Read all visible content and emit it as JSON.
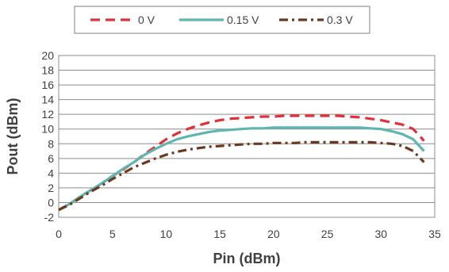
{
  "chart_data": {
    "type": "line",
    "xlabel": "Pin (dBm)",
    "ylabel": "Pout (dBm)",
    "xlim": [
      0,
      35
    ],
    "ylim": [
      -2,
      20
    ],
    "xticks": [
      0,
      5,
      10,
      15,
      20,
      25,
      30,
      35
    ],
    "yticks": [
      -2,
      0,
      2,
      4,
      6,
      8,
      10,
      12,
      14,
      16,
      18,
      20
    ],
    "grid": "horizontal",
    "legend_position": "top",
    "series": [
      {
        "name": "0 V",
        "color": "#e0303a",
        "style": "dashed",
        "x": [
          0,
          1,
          2,
          3,
          4,
          5,
          6,
          7,
          8,
          9,
          10,
          11,
          12,
          13,
          14,
          15,
          16,
          17,
          18,
          19,
          20,
          21,
          22,
          23,
          24,
          25,
          26,
          27,
          28,
          29,
          30,
          31,
          32,
          33,
          34
        ],
        "y": [
          -1,
          -0.2,
          0.8,
          1.7,
          2.6,
          3.6,
          4.5,
          5.5,
          6.6,
          7.6,
          8.6,
          9.4,
          10.0,
          10.5,
          10.9,
          11.2,
          11.4,
          11.5,
          11.6,
          11.7,
          11.7,
          11.8,
          11.8,
          11.8,
          11.8,
          11.8,
          11.8,
          11.7,
          11.6,
          11.4,
          11.2,
          10.9,
          10.6,
          10.0,
          8.4
        ]
      },
      {
        "name": "0.15 V",
        "color": "#5fb5b0",
        "style": "solid",
        "x": [
          0,
          1,
          2,
          3,
          4,
          5,
          6,
          7,
          8,
          9,
          10,
          11,
          12,
          13,
          14,
          15,
          16,
          17,
          18,
          19,
          20,
          21,
          22,
          23,
          24,
          25,
          26,
          27,
          28,
          29,
          30,
          31,
          32,
          33,
          34
        ],
        "y": [
          -1,
          -0.2,
          0.8,
          1.7,
          2.6,
          3.6,
          4.6,
          5.5,
          6.5,
          7.3,
          8.0,
          8.6,
          9.0,
          9.3,
          9.6,
          9.8,
          9.9,
          10.0,
          10.1,
          10.1,
          10.2,
          10.2,
          10.2,
          10.2,
          10.2,
          10.2,
          10.2,
          10.2,
          10.2,
          10.1,
          10.0,
          9.7,
          9.3,
          8.6,
          7.0
        ]
      },
      {
        "name": "0.3 V",
        "color": "#6b3a1e",
        "style": "dashdot",
        "x": [
          0,
          1,
          2,
          3,
          4,
          5,
          6,
          7,
          8,
          9,
          10,
          11,
          12,
          13,
          14,
          15,
          16,
          17,
          18,
          19,
          20,
          21,
          22,
          23,
          24,
          25,
          26,
          27,
          28,
          29,
          30,
          31,
          32,
          33,
          34
        ],
        "y": [
          -1,
          -0.3,
          0.6,
          1.5,
          2.3,
          3.2,
          4.0,
          4.8,
          5.4,
          6.0,
          6.5,
          6.9,
          7.2,
          7.4,
          7.6,
          7.7,
          7.8,
          7.9,
          8.0,
          8.0,
          8.1,
          8.1,
          8.1,
          8.2,
          8.2,
          8.2,
          8.2,
          8.2,
          8.2,
          8.2,
          8.1,
          8.0,
          7.7,
          7.0,
          5.5
        ]
      }
    ]
  }
}
